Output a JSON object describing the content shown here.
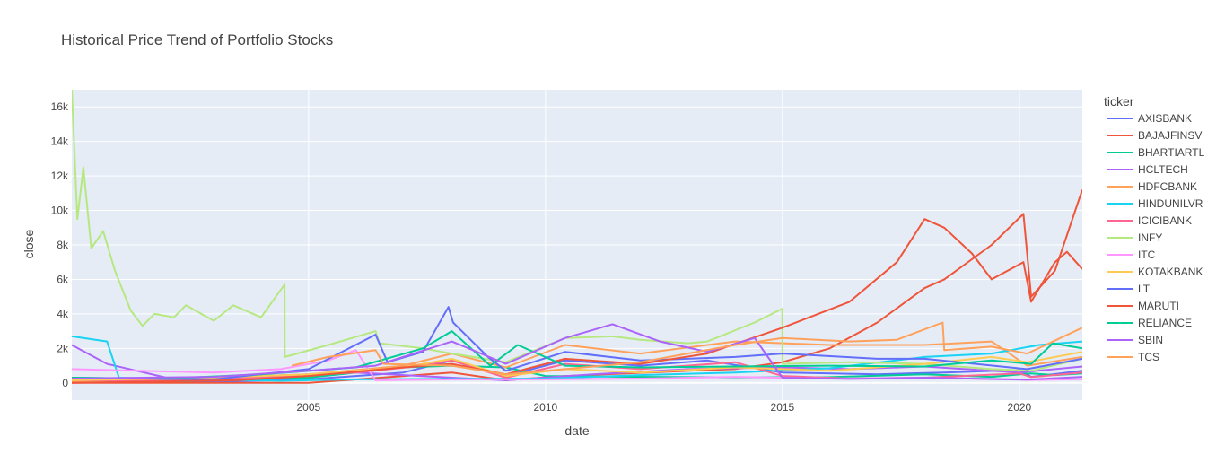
{
  "chart_data": {
    "type": "line",
    "title": "Historical Price Trend of Portfolio Stocks",
    "xlabel": "date",
    "ylabel": "close",
    "xlim": [
      "2000-01-03",
      "2021-04-30"
    ],
    "ylim": [
      -1000,
      17000
    ],
    "x_ticks": [
      {
        "date": "2005-01-01",
        "label": "2005"
      },
      {
        "date": "2010-01-01",
        "label": "2010"
      },
      {
        "date": "2015-01-01",
        "label": "2015"
      },
      {
        "date": "2020-01-01",
        "label": "2020"
      }
    ],
    "y_ticks": [
      {
        "value": 0,
        "label": "0"
      },
      {
        "value": 2000,
        "label": "2k"
      },
      {
        "value": 4000,
        "label": "4k"
      },
      {
        "value": 6000,
        "label": "6k"
      },
      {
        "value": 8000,
        "label": "8k"
      },
      {
        "value": 10000,
        "label": "10k"
      },
      {
        "value": 12000,
        "label": "12k"
      },
      {
        "value": 14000,
        "label": "14k"
      },
      {
        "value": 16000,
        "label": "16k"
      }
    ],
    "grid": true,
    "legend": {
      "title": "ticker",
      "position": "right"
    },
    "series": [
      {
        "name": "AXISBANK",
        "color": "#636efa",
        "x": [
          "2000-01-03",
          "2003-01-01",
          "2005-01-01",
          "2007-01-01",
          "2008-01-10",
          "2009-03-01",
          "2010-06-01",
          "2012-01-01",
          "2013-06-01",
          "2015-01-01",
          "2017-01-01",
          "2018-06-01",
          "2020-01-01",
          "2020-04-01",
          "2021-04-30"
        ],
        "y": [
          40,
          60,
          200,
          600,
          1300,
          400,
          1300,
          1000,
          1300,
          600,
          500,
          600,
          750,
          350,
          700
        ]
      },
      {
        "name": "BAJAJFINSV",
        "color": "#EF553B",
        "x": [
          "2000-01-03",
          "2005-01-01",
          "2008-01-10",
          "2009-03-01",
          "2010-06-01",
          "2013-01-01",
          "2014-01-01",
          "2015-01-01",
          "2016-01-01",
          "2017-01-01",
          "2018-01-01",
          "2018-06-01",
          "2019-06-01",
          "2020-02-01",
          "2020-04-01",
          "2020-10-01",
          "2021-04-30"
        ],
        "y": [
          0,
          0,
          600,
          150,
          400,
          700,
          800,
          1200,
          2000,
          3500,
          5500,
          6000,
          8000,
          9800,
          5000,
          6500,
          11200
        ]
      },
      {
        "name": "BHARTIARTL",
        "color": "#00cc96",
        "x": [
          "2000-01-03",
          "2002-06-01",
          "2005-01-01",
          "2007-01-01",
          "2008-01-10",
          "2009-03-01",
          "2010-01-01",
          "2012-01-01",
          "2014-01-01",
          "2016-01-01",
          "2018-01-01",
          "2019-06-01",
          "2020-04-01",
          "2020-10-01",
          "2021-04-30"
        ],
        "y": [
          200,
          100,
          300,
          900,
          1000,
          900,
          400,
          350,
          320,
          330,
          500,
          350,
          550,
          450,
          550
        ]
      },
      {
        "name": "HCLTECH",
        "color": "#ab63fa",
        "x": [
          "2000-01-03",
          "2000-10-01",
          "2002-01-01",
          "2004-01-01",
          "2006-01-01",
          "2008-01-10",
          "2009-03-01",
          "2011-01-01",
          "2013-01-01",
          "2015-01-01",
          "2016-06-01",
          "2018-01-01",
          "2020-01-01",
          "2021-04-30"
        ],
        "y": [
          2200,
          1100,
          300,
          400,
          600,
          300,
          150,
          500,
          800,
          900,
          800,
          950,
          600,
          950
        ]
      },
      {
        "name": "HDFCBANK",
        "color": "#FFA15A",
        "x": [
          "2000-01-03",
          "2003-01-01",
          "2005-01-01",
          "2007-01-01",
          "2008-01-10",
          "2009-03-01",
          "2010-06-01",
          "2012-01-01",
          "2014-01-01",
          "2016-01-01",
          "2018-01-01",
          "2019-06-01",
          "2020-03-01",
          "2021-04-30"
        ],
        "y": [
          100,
          200,
          500,
          1000,
          1700,
          900,
          2200,
          1700,
          2400,
          2200,
          2200,
          2400,
          1000,
          1500
        ]
      },
      {
        "name": "HINDUNILVR",
        "color": "#19d3f3",
        "x": [
          "2000-01-03",
          "2000-10-01",
          "2001-01-01",
          "2002-01-01",
          "2004-06-01",
          "2006-01-01",
          "2008-01-10",
          "2010-01-01",
          "2012-01-01",
          "2014-01-01",
          "2016-01-01",
          "2018-01-01",
          "2019-06-01",
          "2020-06-01",
          "2021-04-30"
        ],
        "y": [
          2700,
          2400,
          300,
          220,
          120,
          200,
          230,
          250,
          450,
          600,
          850,
          1500,
          1700,
          2200,
          2400
        ]
      },
      {
        "name": "ICICIBANK",
        "color": "#FF6692",
        "x": [
          "2000-01-03",
          "2002-01-01",
          "2004-01-01",
          "2006-01-01",
          "2007-06-01",
          "2008-01-10",
          "2009-03-01",
          "2010-06-01",
          "2012-01-01",
          "2014-01-01",
          "2015-01-01",
          "2016-06-01",
          "2018-01-01",
          "2020-01-01",
          "2020-04-01",
          "2021-04-30"
        ],
        "y": [
          150,
          120,
          300,
          600,
          1000,
          1300,
          300,
          1100,
          800,
          1200,
          400,
          250,
          300,
          550,
          330,
          600
        ]
      },
      {
        "name": "INFY",
        "color": "#B6E880",
        "x": [
          "2000-01-03",
          "2000-02-15",
          "2000-04-01",
          "2000-06-01",
          "2000-09-01",
          "2000-12-01",
          "2001-04-01",
          "2001-07-01",
          "2001-10-01",
          "2002-03-01",
          "2002-06-01",
          "2003-01-01",
          "2003-06-01",
          "2004-01-01",
          "2004-06-30",
          "2004-07-01",
          "2005-06-01",
          "2006-06-01",
          "2006-07-01",
          "2007-06-01",
          "2008-01-10",
          "2009-03-01",
          "2010-06-01",
          "2011-06-01",
          "2012-01-01",
          "2013-01-01",
          "2013-06-01",
          "2014-06-01",
          "2014-12-31",
          "2015-01-01",
          "2016-06-01",
          "2018-01-01",
          "2019-06-01",
          "2020-04-01",
          "2021-04-30"
        ],
        "y": [
          17000,
          9500,
          12500,
          7800,
          8800,
          6500,
          4200,
          3300,
          4000,
          3800,
          4500,
          3600,
          4500,
          3800,
          5700,
          1500,
          2200,
          3000,
          2300,
          2000,
          1700,
          1200,
          2600,
          2700,
          2500,
          2300,
          2400,
          3500,
          4300,
          1100,
          1200,
          1100,
          800,
          700,
          1400
        ]
      },
      {
        "name": "ITC",
        "color": "#FF97FF",
        "x": [
          "2000-01-03",
          "2001-06-01",
          "2003-01-01",
          "2004-06-01",
          "2005-06-01",
          "2006-01-01",
          "2006-06-01",
          "2008-01-10",
          "2010-01-01",
          "2012-01-01",
          "2014-01-01",
          "2016-01-01",
          "2018-01-01",
          "2020-04-01",
          "2021-04-30"
        ],
        "y": [
          800,
          700,
          600,
          800,
          1300,
          1900,
          150,
          200,
          200,
          250,
          350,
          250,
          300,
          170,
          210
        ]
      },
      {
        "name": "KOTAKBANK",
        "color": "#FECB52",
        "x": [
          "2000-01-03",
          "2003-01-01",
          "2005-01-01",
          "2007-01-01",
          "2008-01-10",
          "2009-03-01",
          "2010-06-01",
          "2012-01-01",
          "2014-01-01",
          "2016-01-01",
          "2018-01-01",
          "2019-06-01",
          "2020-03-01",
          "2021-04-30"
        ],
        "y": [
          150,
          300,
          500,
          900,
          1400,
          400,
          800,
          600,
          900,
          700,
          1100,
          1500,
          1200,
          1800
        ]
      },
      {
        "name": "LT",
        "color": "#636efa",
        "x": [
          "2000-01-03",
          "2003-01-01",
          "2005-01-01",
          "2006-06-01",
          "2006-09-01",
          "2007-06-01",
          "2007-12-15",
          "2008-01-20",
          "2008-10-15",
          "2009-03-01",
          "2010-06-01",
          "2012-01-01",
          "2014-01-01",
          "2015-01-01",
          "2017-01-01",
          "2018-01-01",
          "2020-03-01",
          "2021-04-30"
        ],
        "y": [
          300,
          200,
          800,
          2800,
          1200,
          1800,
          4400,
          3500,
          1500,
          700,
          1800,
          1300,
          1500,
          1700,
          1400,
          1400,
          800,
          1400
        ]
      },
      {
        "name": "MARUTI",
        "color": "#EF553B",
        "x": [
          "2000-01-03",
          "2003-07-01",
          "2005-01-01",
          "2007-01-01",
          "2008-01-10",
          "2009-03-01",
          "2010-06-01",
          "2012-01-01",
          "2013-06-01",
          "2015-01-01",
          "2016-06-01",
          "2017-06-01",
          "2018-01-01",
          "2018-06-01",
          "2019-01-01",
          "2019-06-01",
          "2020-02-01",
          "2020-04-01",
          "2020-10-01",
          "2021-01-01",
          "2021-04-30"
        ],
        "y": [
          0,
          150,
          400,
          900,
          1100,
          500,
          1400,
          1100,
          1700,
          3200,
          4700,
          7000,
          9500,
          9000,
          7500,
          6000,
          7000,
          4700,
          7000,
          7600,
          6600
        ]
      },
      {
        "name": "RELIANCE",
        "color": "#00cc96",
        "x": [
          "2000-01-03",
          "2002-01-01",
          "2004-01-01",
          "2006-01-01",
          "2007-06-01",
          "2008-01-10",
          "2008-11-01",
          "2009-06-01",
          "2010-06-01",
          "2012-01-01",
          "2014-01-01",
          "2016-01-01",
          "2018-01-01",
          "2019-06-01",
          "2020-04-01",
          "2020-09-15",
          "2021-04-30"
        ],
        "y": [
          300,
          250,
          500,
          900,
          2000,
          3000,
          1000,
          2200,
          1000,
          900,
          950,
          1000,
          950,
          1300,
          1100,
          2300,
          2000
        ]
      },
      {
        "name": "SBIN",
        "color": "#ab63fa",
        "x": [
          "2000-01-03",
          "2003-01-01",
          "2005-01-01",
          "2006-06-01",
          "2008-01-10",
          "2009-03-01",
          "2010-06-01",
          "2011-06-01",
          "2012-06-01",
          "2013-06-01",
          "2014-06-01",
          "2015-01-01",
          "2016-06-01",
          "2018-01-01",
          "2020-03-01",
          "2021-04-30"
        ],
        "y": [
          250,
          350,
          700,
          1000,
          2400,
          1100,
          2600,
          3400,
          2400,
          1800,
          2600,
          300,
          230,
          300,
          180,
          350
        ]
      },
      {
        "name": "TCS",
        "color": "#FFA15A",
        "x": [
          "2000-01-03",
          "2004-08-25",
          "2005-06-01",
          "2006-06-01",
          "2006-08-01",
          "2008-01-10",
          "2009-03-01",
          "2010-06-01",
          "2012-01-01",
          "2014-01-01",
          "2015-01-01",
          "2016-06-01",
          "2017-06-01",
          "2018-05-20",
          "2018-06-01",
          "2019-06-01",
          "2020-03-01",
          "2021-04-30"
        ],
        "y": [
          null,
          1000,
          1500,
          1900,
          1100,
          1000,
          500,
          800,
          1200,
          2200,
          2600,
          2400,
          2500,
          3500,
          1900,
          2100,
          1700,
          3200
        ]
      }
    ]
  }
}
